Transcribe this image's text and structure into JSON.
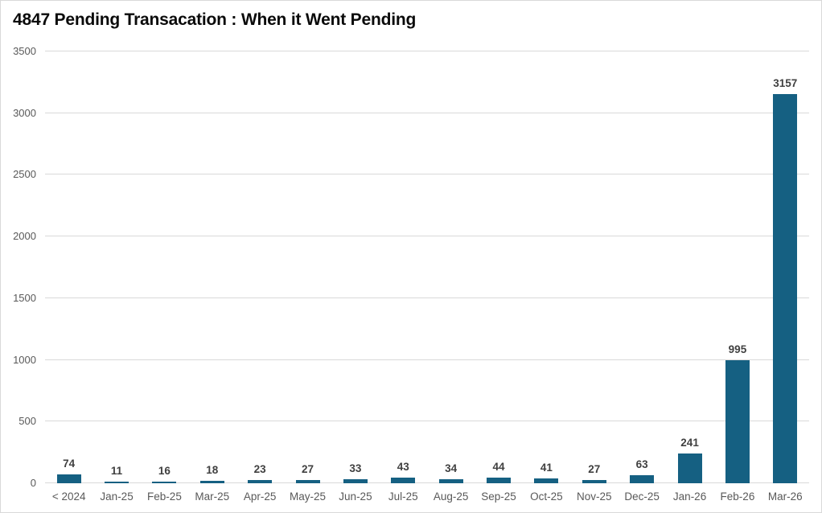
{
  "chart_data": {
    "type": "bar",
    "title": "4847 Pending Transacation : When it Went Pending",
    "categories": [
      "< 2024",
      "Jan-25",
      "Feb-25",
      "Mar-25",
      "Apr-25",
      "May-25",
      "Jun-25",
      "Jul-25",
      "Aug-25",
      "Sep-25",
      "Oct-25",
      "Nov-25",
      "Dec-25",
      "Jan-26",
      "Feb-26",
      "Mar-26"
    ],
    "values": [
      74,
      11,
      16,
      18,
      23,
      27,
      33,
      43,
      34,
      44,
      41,
      27,
      63,
      241,
      995,
      3157
    ],
    "total": 4847,
    "xlabel": "",
    "ylabel": "",
    "ylim": [
      0,
      3500
    ],
    "yticks": [
      0,
      500,
      1000,
      1500,
      2000,
      2500,
      3000,
      3500
    ],
    "grid": true,
    "legend_position": "none",
    "data_labels": true,
    "colors": {
      "bar": "#156082",
      "title_text": "#0a0a0a",
      "value_label_text": "#404040",
      "axis_text": "#595959",
      "gridline": "#d9d9d9",
      "background": "#ffffff",
      "frame_border": "#d9d9d9"
    }
  }
}
